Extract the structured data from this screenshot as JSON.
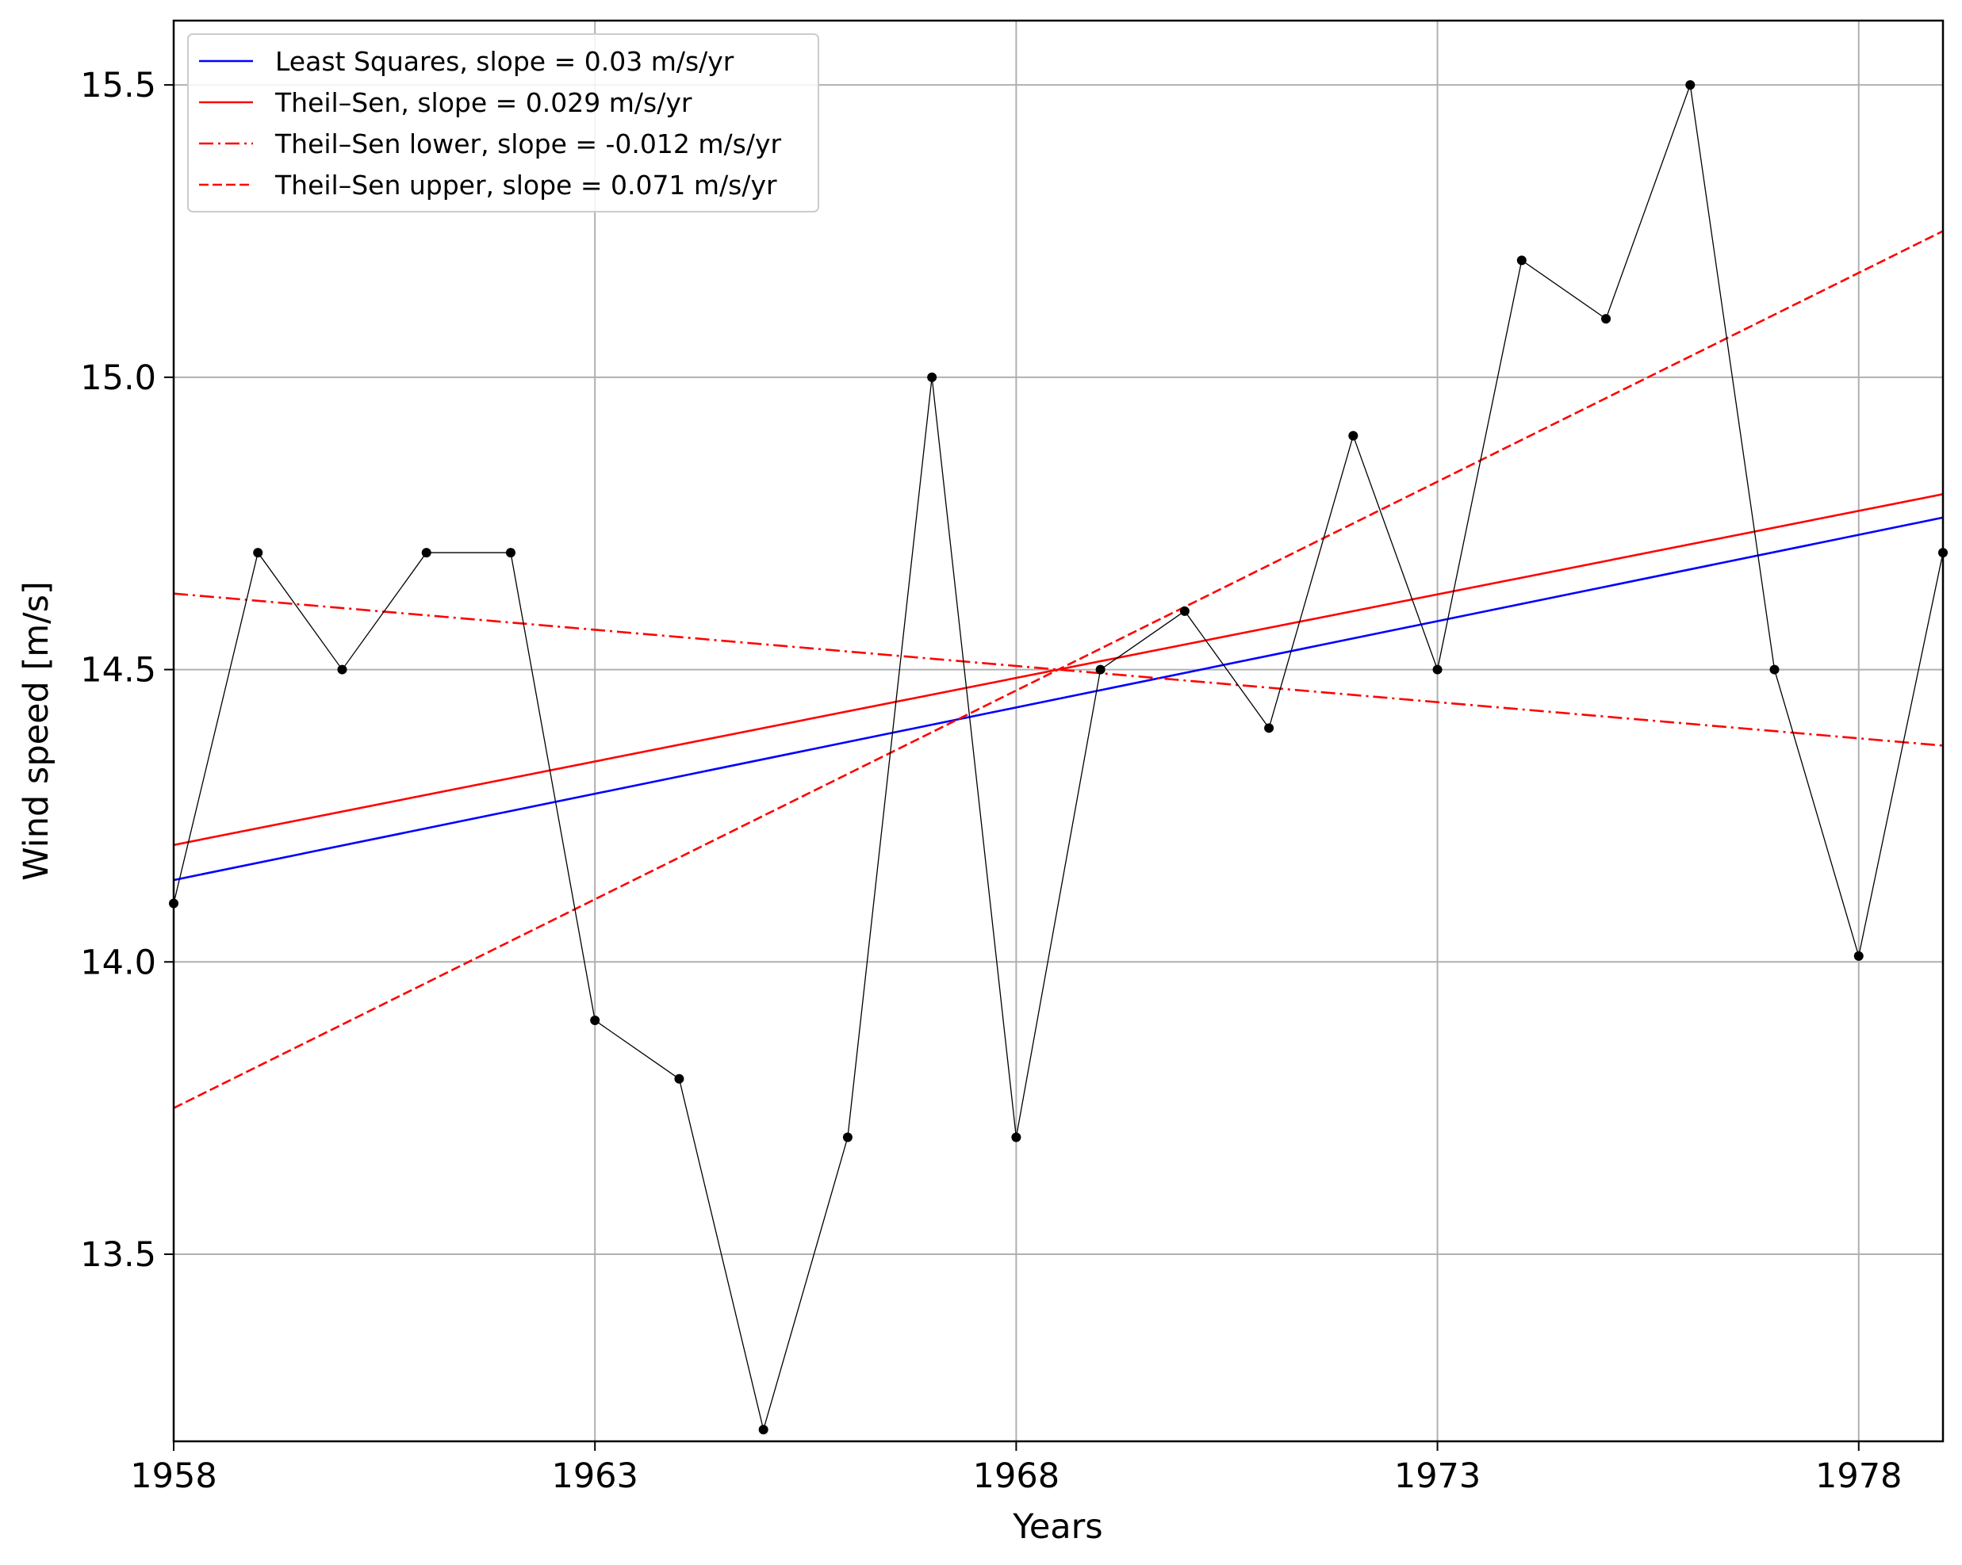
{
  "chart_data": {
    "type": "line",
    "title": "",
    "xlabel": "Years",
    "ylabel": "Wind speed [m/s]",
    "xlim": [
      1958,
      1979
    ],
    "ylim": [
      13.18,
      15.61
    ],
    "xticks": [
      1958,
      1963,
      1968,
      1973,
      1978
    ],
    "xtick_labels": [
      "1958",
      "1963",
      "1968",
      "1973",
      "1978"
    ],
    "yticks": [
      13.5,
      14.0,
      14.5,
      15.0,
      15.5
    ],
    "ytick_labels": [
      "13.5",
      "14.0",
      "14.5",
      "15.0",
      "15.5"
    ],
    "grid": true,
    "legend_position": "top-left",
    "observations": {
      "color": "#000000",
      "x": [
        1958,
        1959,
        1960,
        1961,
        1962,
        1963,
        1964,
        1965,
        1966,
        1967,
        1968,
        1969,
        1970,
        1971,
        1972,
        1973,
        1974,
        1975,
        1976,
        1977,
        1978,
        1979
      ],
      "y": [
        14.1,
        14.7,
        14.5,
        14.7,
        14.7,
        13.9,
        13.8,
        13.2,
        13.7,
        15.0,
        13.7,
        14.5,
        14.6,
        14.4,
        14.9,
        14.5,
        15.2,
        15.1,
        15.5,
        14.5,
        14.01,
        14.7
      ]
    },
    "series": [
      {
        "name": "Least Squares, slope = 0.03 m/s/yr",
        "color": "#0000ff",
        "style": "solid",
        "x": [
          1958,
          1979
        ],
        "y": [
          14.14,
          14.76
        ]
      },
      {
        "name": "Theil–Sen, slope = 0.029 m/s/yr",
        "color": "#ff0000",
        "style": "solid",
        "x": [
          1958,
          1979
        ],
        "y": [
          14.2,
          14.8
        ]
      },
      {
        "name": "Theil–Sen lower, slope = -0.012 m/s/yr",
        "color": "#ff0000",
        "style": "dashdot",
        "x": [
          1958,
          1979
        ],
        "y": [
          14.63,
          14.37
        ]
      },
      {
        "name": "Theil–Sen upper, slope = 0.071 m/s/yr",
        "color": "#ff0000",
        "style": "dashed",
        "x": [
          1958,
          1979
        ],
        "y": [
          13.75,
          15.25
        ]
      }
    ]
  }
}
